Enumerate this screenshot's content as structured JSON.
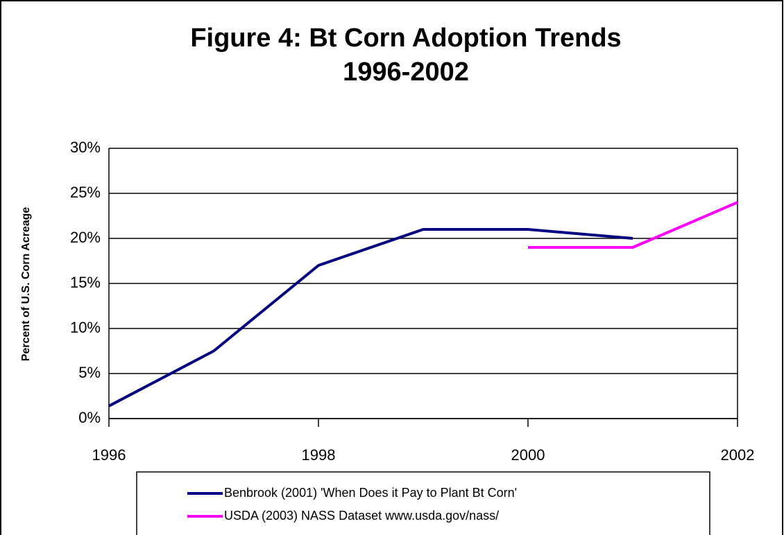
{
  "chart_data": {
    "type": "line",
    "title": "Figure 4:  Bt Corn Adoption Trends",
    "subtitle": "1996-2002",
    "y_label": "Percent of U.S. Corn Acreage",
    "x": [
      1996,
      1997,
      1998,
      1999,
      2000,
      2001,
      2002
    ],
    "series": [
      {
        "name": "Benbrook (2001) 'When Does it Pay to Plant Bt Corn'",
        "color": "#000080",
        "values": [
          1.4,
          7.5,
          17,
          21,
          21,
          20,
          null
        ]
      },
      {
        "name": "USDA (2003) NASS Dataset www.usda.gov/nass/",
        "color": "#ff00ff",
        "values": [
          null,
          null,
          null,
          null,
          19,
          19,
          24
        ]
      }
    ],
    "xlim": [
      1996,
      2002
    ],
    "xticks": [
      1996,
      1998,
      2000,
      2002
    ],
    "ylim": [
      0,
      30
    ],
    "yticks": [
      {
        "value": 0,
        "label": "0%"
      },
      {
        "value": 5,
        "label": "5%"
      },
      {
        "value": 10,
        "label": "10%"
      },
      {
        "value": 15,
        "label": "15%"
      },
      {
        "value": 20,
        "label": "20%"
      },
      {
        "value": 25,
        "label": "25%"
      },
      {
        "value": 30,
        "label": "30%"
      }
    ],
    "grid": true,
    "legend": "bottom"
  }
}
